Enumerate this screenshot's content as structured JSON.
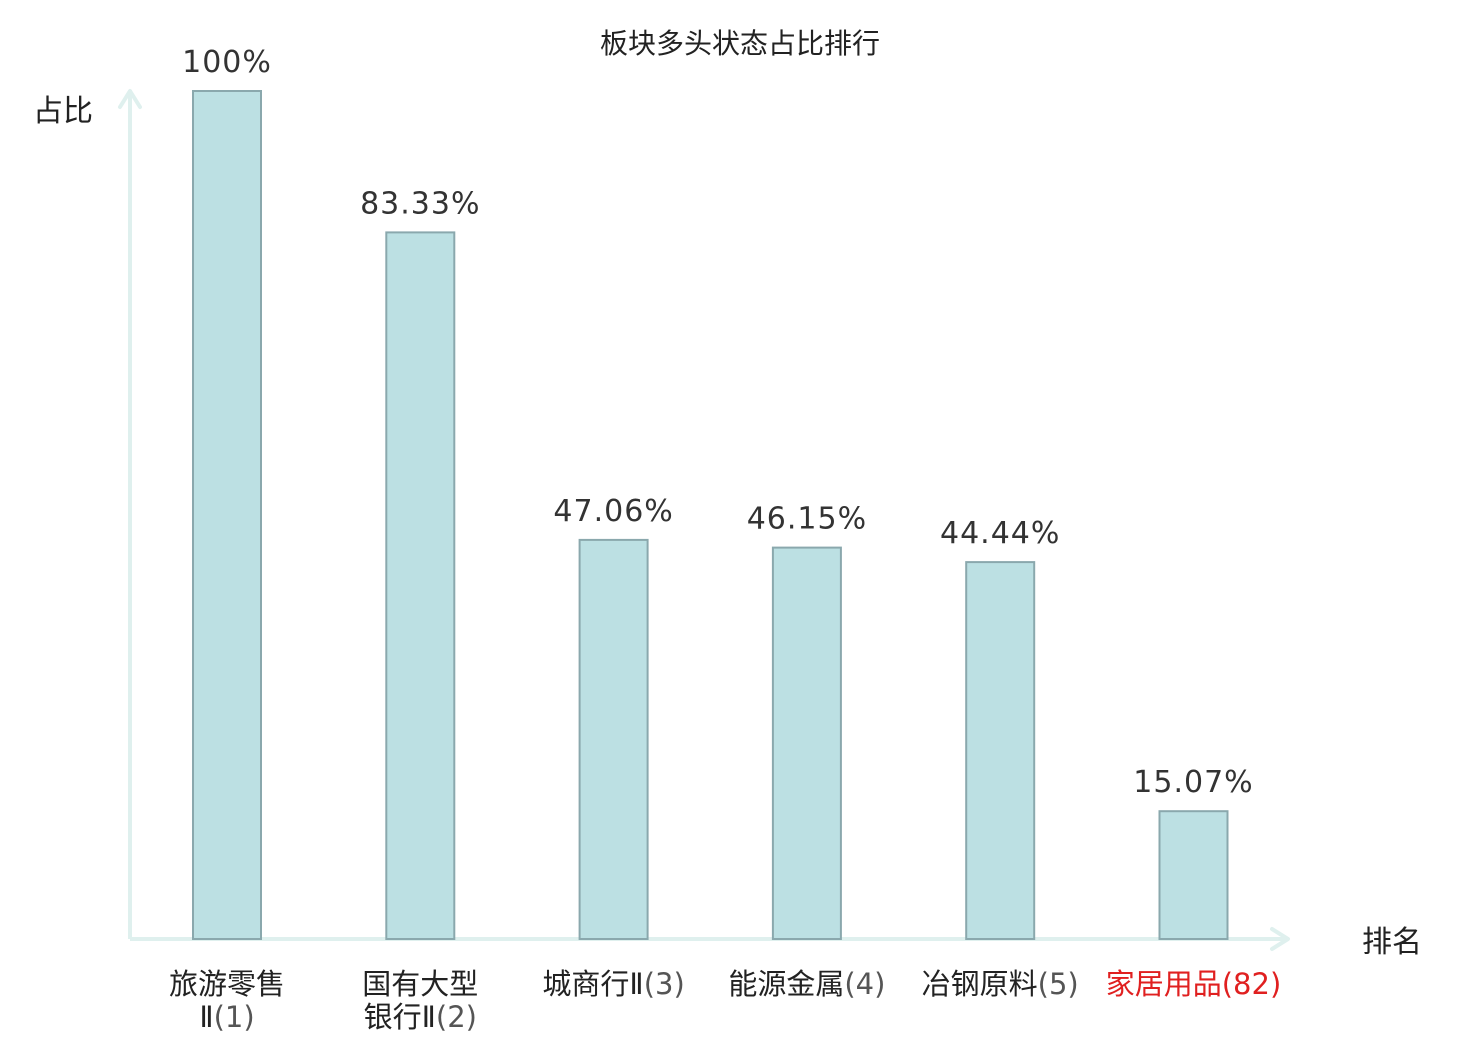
{
  "chart_data": {
    "type": "bar",
    "title": "板块多头状态占比排行",
    "ylabel": "占比",
    "xlabel": "排名",
    "ylim": [
      0,
      100
    ],
    "grid": false,
    "legend": "none",
    "categories": [
      {
        "name_lines": [
          "旅游零售",
          "Ⅱ"
        ],
        "rank": "(1)",
        "highlight": false
      },
      {
        "name_lines": [
          "国有大型",
          "银行Ⅱ"
        ],
        "rank": "(2)",
        "highlight": false
      },
      {
        "name_lines": [
          "城商行Ⅱ"
        ],
        "rank": "(3)",
        "highlight": false
      },
      {
        "name_lines": [
          "能源金属"
        ],
        "rank": "(4)",
        "highlight": false
      },
      {
        "name_lines": [
          "冶钢原料"
        ],
        "rank": "(5)",
        "highlight": false
      },
      {
        "name_lines": [
          "家居用品"
        ],
        "rank": "(82)",
        "highlight": true
      }
    ],
    "values": [
      100,
      83.33,
      47.06,
      46.15,
      44.44,
      15.07
    ],
    "value_labels": [
      "100%",
      "83.33%",
      "47.06%",
      "46.15%",
      "44.44%",
      "15.07%"
    ]
  },
  "colors": {
    "bar_fill": "#bce0e3",
    "bar_stroke": "#8aa8ad",
    "axis": "#dff0ee",
    "text": "#222222",
    "value_text": "#333333",
    "rank_text": "#555555",
    "highlight": "#e02020"
  }
}
